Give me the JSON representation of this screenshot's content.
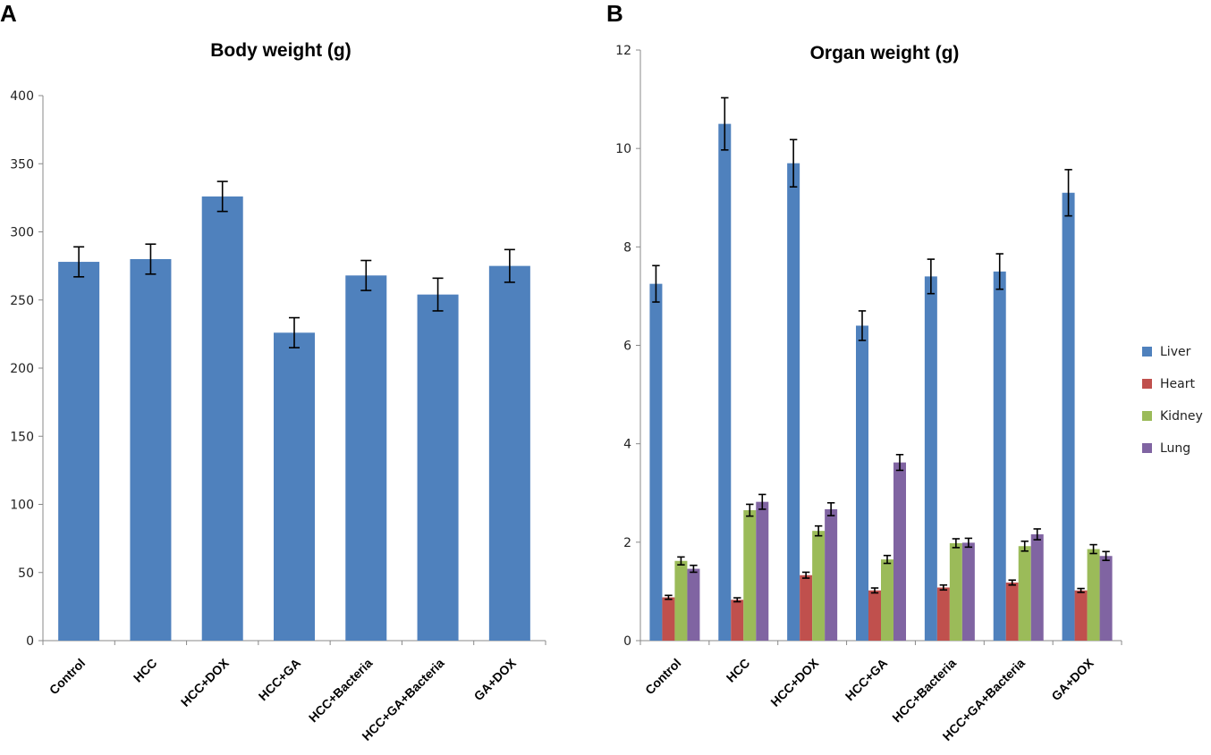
{
  "panels": [
    "A",
    "B"
  ],
  "chart_data": [
    {
      "type": "bar",
      "title": "Body weight (g)",
      "xlabel": "",
      "ylabel": "",
      "ylim": [
        0,
        400
      ],
      "yticks": [
        "0",
        "50",
        "100",
        "150",
        "200",
        "250",
        "300",
        "350",
        "400"
      ],
      "grid": false,
      "categories": [
        "Control",
        "HCC",
        "HCC+DOX",
        "HCC+GA",
        "HCC+Bacteria",
        "HCC+GA+Bacteria",
        "GA+DOX"
      ],
      "series": [
        {
          "name": "Body weight",
          "color": "#4F81BD",
          "values": [
            278,
            280,
            326,
            226,
            268,
            254,
            275
          ],
          "errors": [
            11,
            11,
            11,
            11,
            11,
            12,
            12
          ]
        }
      ]
    },
    {
      "type": "bar",
      "title": "Organ weight (g)",
      "xlabel": "",
      "ylabel": "",
      "ylim": [
        0,
        12
      ],
      "yticks": [
        "0",
        "2",
        "4",
        "6",
        "8",
        "10",
        "12"
      ],
      "grid": false,
      "legend_position": "right",
      "categories": [
        "Control",
        "HCC",
        "HCC+DOX",
        "HCC+GA",
        "HCC+Bacteria",
        "HCC+GA+Bacteria",
        "GA+DOX"
      ],
      "series": [
        {
          "name": "Liver",
          "color": "#4F81BD",
          "values": [
            7.25,
            10.5,
            9.7,
            6.4,
            7.4,
            7.5,
            9.1
          ],
          "errors": [
            0.37,
            0.53,
            0.48,
            0.3,
            0.35,
            0.36,
            0.47
          ]
        },
        {
          "name": "Heart",
          "color": "#C0504D",
          "values": [
            0.88,
            0.83,
            1.33,
            1.02,
            1.08,
            1.18,
            1.02
          ],
          "errors": [
            0.04,
            0.04,
            0.06,
            0.05,
            0.05,
            0.05,
            0.04
          ]
        },
        {
          "name": "Kidney",
          "color": "#9BBB59",
          "values": [
            1.62,
            2.65,
            2.23,
            1.65,
            1.98,
            1.92,
            1.86
          ],
          "errors": [
            0.08,
            0.12,
            0.1,
            0.08,
            0.09,
            0.1,
            0.09
          ]
        },
        {
          "name": "Lung",
          "color": "#8064A2",
          "values": [
            1.46,
            2.82,
            2.67,
            3.62,
            1.99,
            2.16,
            1.72
          ],
          "errors": [
            0.07,
            0.15,
            0.13,
            0.16,
            0.09,
            0.11,
            0.09
          ]
        }
      ]
    }
  ]
}
